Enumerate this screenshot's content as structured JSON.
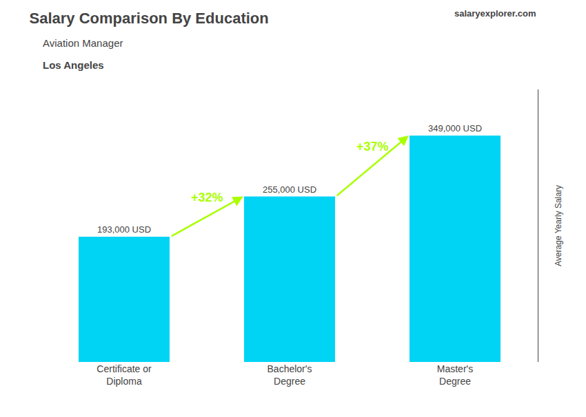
{
  "chart_data": {
    "type": "bar",
    "title": "Salary Comparison By Education",
    "subtitle": "Aviation Manager",
    "location": "Los Angeles",
    "source": "salaryexplorer.com",
    "ylabel": "Average Yearly Salary",
    "categories": [
      "Certificate or\nDiploma",
      "Bachelor's\nDegree",
      "Master's\nDegree"
    ],
    "values": [
      193000,
      255000,
      349000
    ],
    "value_labels": [
      "193,000 USD",
      "255,000 USD",
      "349,000 USD"
    ],
    "data_labels": true,
    "color": "#00d4f5",
    "annotations": [
      {
        "text": "+32%",
        "color": "#aaff00"
      },
      {
        "text": "+37%",
        "color": "#aaff00"
      }
    ],
    "ylim": [
      0,
      420000
    ],
    "grid": false,
    "tick_labels": "x"
  }
}
